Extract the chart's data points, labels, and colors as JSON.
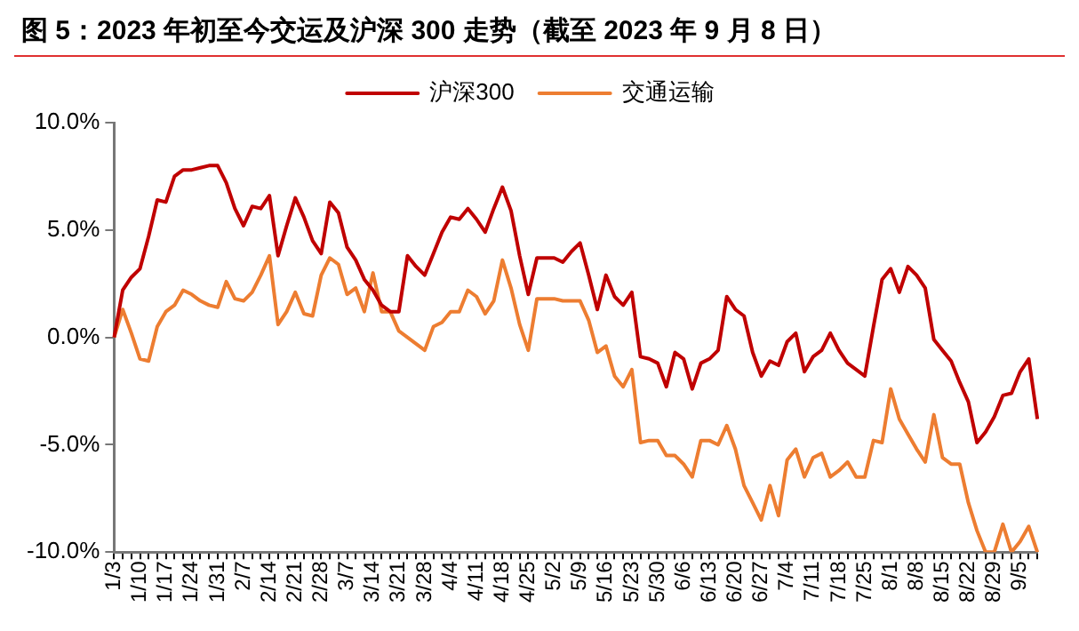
{
  "chart_data": {
    "type": "line",
    "title": "图 5：2023 年初至今交运及沪深 300 走势（截至 2023 年 9 月 8 日）",
    "categories": [
      "1/3",
      null,
      null,
      "1/10",
      null,
      null,
      "1/17",
      null,
      null,
      "1/24",
      null,
      null,
      "1/31",
      null,
      null,
      "2/7",
      null,
      null,
      "2/14",
      null,
      null,
      "2/21",
      null,
      null,
      "2/28",
      null,
      null,
      "3/7",
      null,
      null,
      "3/14",
      null,
      null,
      "3/21",
      null,
      null,
      "3/28",
      null,
      null,
      "4/4",
      null,
      null,
      "4/11",
      null,
      null,
      "4/18",
      null,
      null,
      "4/25",
      null,
      null,
      "5/2",
      null,
      null,
      "5/9",
      null,
      null,
      "5/16",
      null,
      null,
      "5/23",
      null,
      null,
      "5/30",
      null,
      null,
      "6/6",
      null,
      null,
      "6/13",
      null,
      null,
      "6/20",
      null,
      null,
      "6/27",
      null,
      null,
      "7/4",
      null,
      null,
      "7/11",
      null,
      null,
      "7/18",
      null,
      null,
      "7/25",
      null,
      null,
      "8/1",
      null,
      null,
      "8/8",
      null,
      null,
      "8/15",
      null,
      null,
      "8/22",
      null,
      null,
      "8/29",
      null,
      null,
      "9/5",
      null,
      null
    ],
    "series": [
      {
        "name": "沪深300",
        "color": "#c00000",
        "values": [
          0,
          2.2,
          2.8,
          3.2,
          4.7,
          6.4,
          6.3,
          7.5,
          7.8,
          7.8,
          7.9,
          8.0,
          8.0,
          7.2,
          6.0,
          5.2,
          6.1,
          6.0,
          6.6,
          3.8,
          5.2,
          6.5,
          5.6,
          4.5,
          3.9,
          6.3,
          5.8,
          4.2,
          3.6,
          2.7,
          2.2,
          1.5,
          1.2,
          1.2,
          3.8,
          3.3,
          2.9,
          3.9,
          4.9,
          5.6,
          5.5,
          6.0,
          5.5,
          4.9,
          6.0,
          7.0,
          5.9,
          3.8,
          2.0,
          3.7,
          3.7,
          3.7,
          3.5,
          4.0,
          4.4,
          2.9,
          1.3,
          2.9,
          1.9,
          1.5,
          2.1,
          -0.9,
          -1.0,
          -1.2,
          -2.3,
          -0.7,
          -1.0,
          -2.4,
          -1.2,
          -1.0,
          -0.6,
          1.9,
          1.3,
          1.0,
          -0.7,
          -1.8,
          -1.1,
          -1.3,
          -0.2,
          0.2,
          -1.6,
          -0.9,
          -0.6,
          0.2,
          -0.6,
          -1.2,
          -1.5,
          -1.8,
          0.5,
          2.7,
          3.2,
          2.1,
          3.3,
          2.9,
          2.3,
          -0.1,
          -0.6,
          -1.1,
          -2.1,
          -3.0,
          -4.9,
          -4.4,
          -3.7,
          -2.7,
          -2.6,
          -1.6,
          -1.0,
          -3.8
        ]
      },
      {
        "name": "交通运输",
        "color": "#ed7d31",
        "values": [
          0,
          1.3,
          0.2,
          -1.0,
          -1.1,
          0.5,
          1.2,
          1.5,
          2.2,
          2.0,
          1.7,
          1.5,
          1.4,
          2.6,
          1.8,
          1.7,
          2.1,
          2.9,
          3.8,
          0.6,
          1.2,
          2.1,
          1.1,
          1.0,
          2.9,
          3.7,
          3.4,
          2.0,
          2.3,
          1.2,
          3.0,
          1.2,
          1.2,
          0.3,
          0.0,
          -0.3,
          -0.6,
          0.5,
          0.7,
          1.2,
          1.2,
          2.2,
          1.9,
          1.1,
          1.7,
          3.6,
          2.3,
          0.6,
          -0.6,
          1.8,
          1.8,
          1.8,
          1.7,
          1.7,
          1.7,
          0.8,
          -0.7,
          -0.4,
          -1.8,
          -2.3,
          -1.5,
          -4.9,
          -4.8,
          -4.8,
          -5.5,
          -5.5,
          -5.9,
          -6.5,
          -4.8,
          -4.8,
          -5.0,
          -4.1,
          -5.2,
          -6.9,
          -7.7,
          -8.5,
          -6.9,
          -8.3,
          -5.7,
          -5.2,
          -6.5,
          -5.6,
          -5.4,
          -6.5,
          -6.2,
          -5.8,
          -6.5,
          -6.5,
          -4.8,
          -4.9,
          -2.4,
          -3.8,
          -4.5,
          -5.2,
          -5.8,
          -3.6,
          -5.6,
          -5.9,
          -5.9,
          -7.7,
          -9.0,
          -10.0,
          -10.0,
          -8.7,
          -10.0,
          -9.5,
          -8.8,
          -10.0
        ]
      }
    ],
    "ylim": [
      -10,
      10
    ],
    "yticks": [
      {
        "value": -10,
        "label": "-10.0%"
      },
      {
        "value": -5,
        "label": "-5.0%"
      },
      {
        "value": 0,
        "label": "0.0%"
      },
      {
        "value": 5,
        "label": "5.0%"
      },
      {
        "value": 10,
        "label": "10.0%"
      }
    ],
    "grid": false,
    "legend": "top",
    "marker": "none",
    "line_style": "solid"
  }
}
